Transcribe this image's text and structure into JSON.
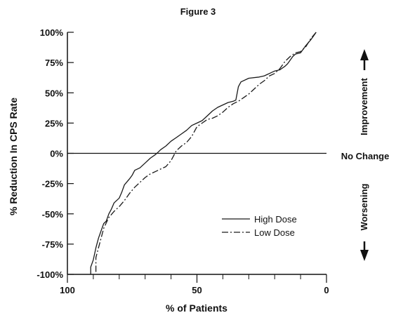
{
  "chart_data": {
    "type": "line",
    "title": "Figure 3",
    "xlabel": "% of Patients",
    "ylabel": "% Reduction In CPS Rate",
    "xlim": [
      100,
      0
    ],
    "ylim": [
      -100,
      100
    ],
    "x_ticks": [
      100,
      50,
      0
    ],
    "x_tick_labels": [
      "100",
      "50",
      "0"
    ],
    "x_minor_ticks": [
      90,
      80,
      70,
      60,
      40,
      30,
      20,
      10
    ],
    "y_ticks": [
      100,
      75,
      50,
      25,
      0,
      -25,
      -50,
      -75,
      -100
    ],
    "y_tick_labels": [
      "100%",
      "75%",
      "50%",
      "25%",
      "0%",
      "-25%",
      "-50%",
      "-75%",
      "-100%"
    ],
    "zero_line_label": "No Change",
    "upper_annotation": "Improvement",
    "lower_annotation": "Worsening",
    "legend_position": "lower-right",
    "series": [
      {
        "name": "High Dose",
        "style": "solid",
        "points": [
          [
            4,
            100
          ],
          [
            5,
            97
          ],
          [
            6,
            94
          ],
          [
            8,
            89
          ],
          [
            10,
            83
          ],
          [
            12,
            82
          ],
          [
            13,
            80
          ],
          [
            15,
            74
          ],
          [
            16,
            72
          ],
          [
            18,
            69
          ],
          [
            20,
            68
          ],
          [
            22,
            66
          ],
          [
            24,
            64
          ],
          [
            26,
            63
          ],
          [
            30,
            62
          ],
          [
            33,
            59
          ],
          [
            34,
            55
          ],
          [
            35,
            44
          ],
          [
            36,
            43
          ],
          [
            38,
            42
          ],
          [
            42,
            38
          ],
          [
            44,
            35
          ],
          [
            46,
            31
          ],
          [
            48,
            27
          ],
          [
            50,
            25
          ],
          [
            52,
            23
          ],
          [
            54,
            19
          ],
          [
            56,
            16
          ],
          [
            58,
            13
          ],
          [
            60,
            10
          ],
          [
            62,
            6
          ],
          [
            64,
            3
          ],
          [
            65,
            1
          ],
          [
            66,
            -1
          ],
          [
            68,
            -4
          ],
          [
            70,
            -8
          ],
          [
            72,
            -12
          ],
          [
            74,
            -14
          ],
          [
            75,
            -18
          ],
          [
            76,
            -21
          ],
          [
            78,
            -26
          ],
          [
            79,
            -32
          ],
          [
            80,
            -37
          ],
          [
            82,
            -41
          ],
          [
            83,
            -46
          ],
          [
            84,
            -50
          ],
          [
            85,
            -56
          ],
          [
            86,
            -58
          ],
          [
            87,
            -64
          ],
          [
            88,
            -70
          ],
          [
            89,
            -78
          ],
          [
            90,
            -88
          ],
          [
            91,
            -94
          ],
          [
            91,
            -100
          ]
        ]
      },
      {
        "name": "Low Dose",
        "style": "dashed",
        "points": [
          [
            4,
            100
          ],
          [
            6,
            95
          ],
          [
            8,
            88
          ],
          [
            10,
            84
          ],
          [
            12,
            83
          ],
          [
            14,
            80
          ],
          [
            16,
            76
          ],
          [
            18,
            70
          ],
          [
            20,
            66
          ],
          [
            22,
            64
          ],
          [
            24,
            60
          ],
          [
            26,
            57
          ],
          [
            28,
            53
          ],
          [
            30,
            49
          ],
          [
            32,
            46
          ],
          [
            34,
            43
          ],
          [
            36,
            41
          ],
          [
            38,
            38
          ],
          [
            40,
            34
          ],
          [
            42,
            31
          ],
          [
            44,
            29
          ],
          [
            46,
            28
          ],
          [
            48,
            25
          ],
          [
            50,
            22
          ],
          [
            52,
            14
          ],
          [
            54,
            9
          ],
          [
            56,
            6
          ],
          [
            58,
            2
          ],
          [
            60,
            -6
          ],
          [
            62,
            -11
          ],
          [
            64,
            -13
          ],
          [
            66,
            -15
          ],
          [
            68,
            -17
          ],
          [
            70,
            -20
          ],
          [
            72,
            -24
          ],
          [
            74,
            -28
          ],
          [
            76,
            -33
          ],
          [
            78,
            -39
          ],
          [
            80,
            -44
          ],
          [
            82,
            -48
          ],
          [
            84,
            -53
          ],
          [
            86,
            -62
          ],
          [
            87,
            -70
          ],
          [
            88,
            -78
          ],
          [
            89,
            -86
          ],
          [
            89,
            -100
          ]
        ]
      }
    ]
  },
  "colors": {
    "line": "#1a1a1a",
    "axis": "#111111",
    "background": "#ffffff"
  }
}
